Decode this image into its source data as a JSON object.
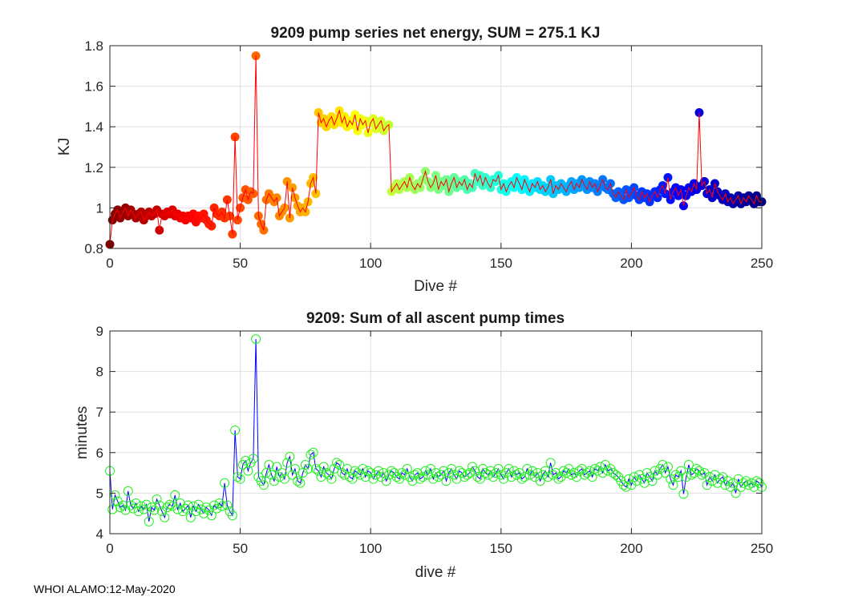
{
  "footer": "WHOI ALAMO:12-May-2020",
  "chart_data": [
    {
      "type": "scatter",
      "title": "9209 pump series net energy, SUM = 275.1 KJ",
      "xlabel": "Dive #",
      "ylabel": "KJ",
      "xlim": [
        0,
        250
      ],
      "ylim": [
        0.8,
        1.8
      ],
      "xticks": [
        0,
        50,
        100,
        150,
        200,
        250
      ],
      "yticks": [
        0.8,
        1,
        1.2,
        1.4,
        1.6,
        1.8
      ],
      "ytick_labels": [
        "0.8",
        "1",
        "1.2",
        "1.4",
        "1.6",
        "1.8"
      ],
      "grid": true,
      "line_color": "#ff0000",
      "colormap": "jet",
      "series": [
        {
          "name": "net energy",
          "x_start": 0,
          "x_step": 1,
          "values": [
            0.82,
            0.94,
            0.97,
            0.99,
            0.95,
            0.98,
            1.0,
            0.96,
            0.99,
            0.97,
            0.95,
            0.97,
            0.98,
            0.94,
            0.96,
            0.98,
            0.96,
            0.97,
            0.99,
            0.89,
            0.97,
            0.96,
            0.98,
            0.97,
            0.99,
            0.96,
            0.97,
            0.95,
            0.96,
            0.94,
            0.96,
            0.95,
            0.97,
            0.93,
            0.96,
            0.95,
            0.97,
            0.94,
            0.92,
            0.91,
            1.0,
            0.97,
            0.96,
            0.98,
            0.95,
            1.04,
            0.96,
            0.87,
            1.35,
            0.94,
            1.0,
            1.05,
            1.09,
            1.04,
            1.08,
            1.07,
            1.75,
            0.96,
            0.92,
            0.89,
            1.04,
            1.07,
            1.05,
            1.03,
            1.05,
            0.96,
            0.98,
            1.0,
            1.13,
            0.95,
            1.1,
            1.05,
            1.01,
            0.98,
            1.0,
            0.98,
            1.03,
            1.12,
            1.15,
            1.07,
            1.47,
            1.42,
            1.44,
            1.4,
            1.43,
            1.45,
            1.41,
            1.44,
            1.48,
            1.42,
            1.45,
            1.4,
            1.43,
            1.41,
            1.46,
            1.38,
            1.44,
            1.41,
            1.43,
            1.37,
            1.42,
            1.44,
            1.39,
            1.41,
            1.43,
            1.38,
            1.4,
            1.41,
            1.08,
            1.1,
            1.12,
            1.09,
            1.11,
            1.13,
            1.1,
            1.15,
            1.11,
            1.09,
            1.12,
            1.1,
            1.14,
            1.18,
            1.13,
            1.1,
            1.12,
            1.16,
            1.09,
            1.13,
            1.11,
            1.14,
            1.08,
            1.12,
            1.15,
            1.1,
            1.13,
            1.11,
            1.14,
            1.09,
            1.12,
            1.1,
            1.17,
            1.13,
            1.16,
            1.11,
            1.15,
            1.12,
            1.1,
            1.14,
            1.13,
            1.16,
            1.09,
            1.12,
            1.08,
            1.11,
            1.13,
            1.1,
            1.15,
            1.12,
            1.09,
            1.14,
            1.11,
            1.08,
            1.12,
            1.1,
            1.13,
            1.09,
            1.11,
            1.08,
            1.1,
            1.14,
            1.07,
            1.11,
            1.09,
            1.12,
            1.1,
            1.08,
            1.11,
            1.13,
            1.09,
            1.12,
            1.1,
            1.14,
            1.11,
            1.09,
            1.13,
            1.1,
            1.12,
            1.08,
            1.11,
            1.14,
            1.1,
            1.09,
            1.12,
            1.07,
            1.05,
            1.08,
            1.06,
            1.04,
            1.09,
            1.05,
            1.07,
            1.1,
            1.06,
            1.04,
            1.08,
            1.05,
            1.07,
            1.03,
            1.06,
            1.08,
            1.05,
            1.09,
            1.11,
            1.07,
            1.15,
            1.04,
            1.08,
            1.1,
            1.06,
            1.09,
            1.01,
            1.06,
            1.1,
            1.08,
            1.12,
            1.09,
            1.47,
            1.11,
            1.13,
            1.07,
            1.09,
            1.05,
            1.12,
            1.08,
            1.06,
            1.04,
            1.07,
            1.03,
            1.05,
            1.02,
            1.04,
            1.06,
            1.02,
            1.05,
            1.03,
            1.06,
            1.04,
            1.02,
            1.06,
            1.03,
            1.03
          ]
        }
      ]
    },
    {
      "type": "line",
      "title": "9209: Sum of all ascent pump times",
      "xlabel": "dive #",
      "ylabel": "minutes",
      "xlim": [
        0,
        250
      ],
      "ylim": [
        4,
        9
      ],
      "xticks": [
        0,
        50,
        100,
        150,
        200,
        250
      ],
      "yticks": [
        4,
        5,
        6,
        7,
        8,
        9
      ],
      "ytick_labels": [
        "4",
        "5",
        "6",
        "7",
        "8",
        "9"
      ],
      "grid": true,
      "line_color": "#0000ff",
      "marker_color": "#22ee22",
      "marker": "circle",
      "series": [
        {
          "name": "pump time",
          "x_start": 0,
          "x_step": 1,
          "values": [
            5.55,
            4.6,
            4.95,
            4.8,
            4.65,
            4.7,
            4.58,
            5.05,
            4.7,
            4.62,
            4.75,
            4.55,
            4.68,
            4.6,
            4.72,
            4.3,
            4.65,
            4.58,
            4.85,
            4.7,
            4.55,
            4.4,
            4.65,
            4.72,
            4.68,
            4.95,
            4.6,
            4.75,
            4.55,
            4.62,
            4.7,
            4.4,
            4.68,
            4.55,
            4.72,
            4.6,
            4.5,
            4.65,
            4.58,
            4.45,
            4.7,
            4.62,
            4.75,
            4.68,
            5.25,
            4.7,
            4.55,
            4.45,
            6.55,
            5.4,
            5.35,
            5.7,
            5.8,
            5.55,
            5.75,
            5.85,
            8.8,
            5.4,
            5.3,
            5.2,
            5.5,
            5.7,
            5.45,
            5.3,
            5.65,
            5.4,
            5.5,
            5.35,
            5.75,
            5.9,
            5.45,
            5.6,
            5.3,
            5.25,
            5.5,
            5.7,
            5.6,
            5.95,
            6.0,
            5.6,
            5.55,
            5.4,
            5.65,
            5.5,
            5.45,
            5.35,
            5.6,
            5.75,
            5.7,
            5.5,
            5.45,
            5.6,
            5.4,
            5.35,
            5.55,
            5.5,
            5.45,
            5.6,
            5.4,
            5.55,
            5.5,
            5.35,
            5.45,
            5.55,
            5.4,
            5.5,
            5.3,
            5.45,
            5.55,
            5.5,
            5.4,
            5.35,
            5.5,
            5.45,
            5.6,
            5.4,
            5.3,
            5.45,
            5.5,
            5.35,
            5.4,
            5.55,
            5.45,
            5.6,
            5.35,
            5.5,
            5.4,
            5.45,
            5.55,
            5.3,
            5.5,
            5.6,
            5.45,
            5.35,
            5.55,
            5.5,
            5.4,
            5.45,
            5.5,
            5.65,
            5.55,
            5.4,
            5.35,
            5.6,
            5.5,
            5.45,
            5.55,
            5.4,
            5.5,
            5.6,
            5.45,
            5.35,
            5.5,
            5.6,
            5.4,
            5.55,
            5.45,
            5.5,
            5.35,
            5.4,
            5.6,
            5.45,
            5.55,
            5.4,
            5.5,
            5.3,
            5.45,
            5.55,
            5.4,
            5.75,
            5.45,
            5.5,
            5.35,
            5.4,
            5.55,
            5.5,
            5.6,
            5.45,
            5.5,
            5.4,
            5.55,
            5.6,
            5.45,
            5.5,
            5.55,
            5.4,
            5.6,
            5.55,
            5.65,
            5.5,
            5.7,
            5.55,
            5.6,
            5.5,
            5.45,
            5.4,
            5.3,
            5.2,
            5.15,
            5.35,
            5.2,
            5.4,
            5.3,
            5.45,
            5.35,
            5.25,
            5.5,
            5.4,
            5.3,
            5.55,
            5.45,
            5.6,
            5.7,
            5.5,
            5.65,
            5.35,
            5.2,
            5.45,
            5.4,
            5.55,
            4.98,
            5.4,
            5.7,
            5.45,
            5.5,
            5.6,
            5.55,
            5.45,
            5.5,
            5.2,
            5.4,
            5.3,
            5.45,
            5.25,
            5.35,
            5.4,
            5.2,
            5.3,
            5.15,
            5.25,
            5.0,
            5.35,
            5.15,
            5.25,
            5.3,
            5.2,
            5.25,
            5.15,
            5.3,
            5.25,
            5.15
          ]
        }
      ]
    }
  ]
}
